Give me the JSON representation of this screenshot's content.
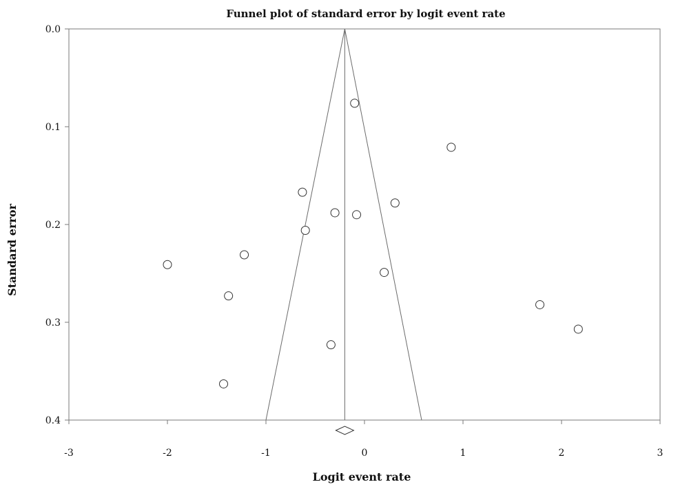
{
  "chart_data": {
    "type": "scatter",
    "title": "Funnel plot of standard error by logit event rate",
    "xlabel": "Logit event rate",
    "ylabel": "Standard error",
    "xlim": [
      -3,
      3
    ],
    "ylim": [
      0.4,
      0.0
    ],
    "y_axis_inverted": true,
    "x_ticks": [
      "-3",
      "-2",
      "-1",
      "0",
      "1",
      "2",
      "3"
    ],
    "y_ticks": [
      "0.0",
      "0.1",
      "0.2",
      "0.3",
      "0.4"
    ],
    "grid": false,
    "legend": "none",
    "pooled_estimate": -0.2,
    "funnel_bounds_at_max_se": [
      -1.0,
      0.58
    ],
    "points": [
      {
        "x": -0.1,
        "y": 0.076
      },
      {
        "x": 0.88,
        "y": 0.121
      },
      {
        "x": -0.63,
        "y": 0.167
      },
      {
        "x": 0.31,
        "y": 0.178
      },
      {
        "x": -0.3,
        "y": 0.188
      },
      {
        "x": -0.08,
        "y": 0.19
      },
      {
        "x": -0.6,
        "y": 0.206
      },
      {
        "x": -1.22,
        "y": 0.231
      },
      {
        "x": -2.0,
        "y": 0.241
      },
      {
        "x": 0.2,
        "y": 0.249
      },
      {
        "x": -1.38,
        "y": 0.273
      },
      {
        "x": 1.78,
        "y": 0.282
      },
      {
        "x": 2.17,
        "y": 0.307
      },
      {
        "x": -0.34,
        "y": 0.323
      },
      {
        "x": -1.43,
        "y": 0.363
      }
    ]
  }
}
